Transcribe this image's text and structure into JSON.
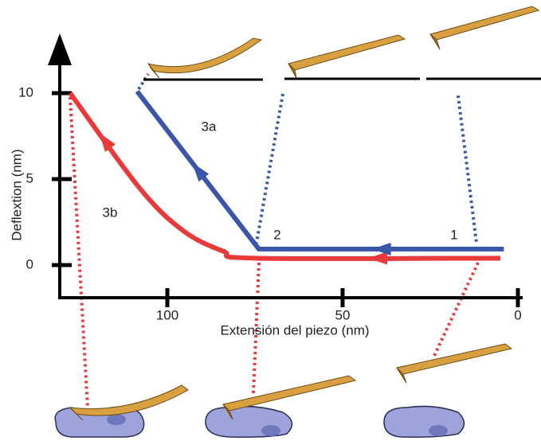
{
  "chart_data": {
    "type": "line",
    "x_label": "Extensión del piezo (nm)",
    "y_label": "Deflextion (nm)",
    "xlim": [
      131,
      -1
    ],
    "ylim": [
      -1.9,
      13.3
    ],
    "xticks": [
      100,
      50,
      0
    ],
    "yticks": [
      0,
      5,
      10
    ],
    "series": [
      {
        "color": "#e83a3a",
        "x": [
          127.7,
          108,
          95.5,
          84,
          75,
          5
        ],
        "values": [
          10,
          4.5,
          2,
          0.8,
          0.4,
          0.4
        ]
      },
      {
        "color": "#3a56a8",
        "x": [
          108.6,
          73.9,
          4
        ],
        "values": [
          10.1,
          0.93,
          0.93
        ]
      }
    ],
    "annotations": [
      "3a",
      "3b",
      "2",
      "1"
    ]
  }
}
